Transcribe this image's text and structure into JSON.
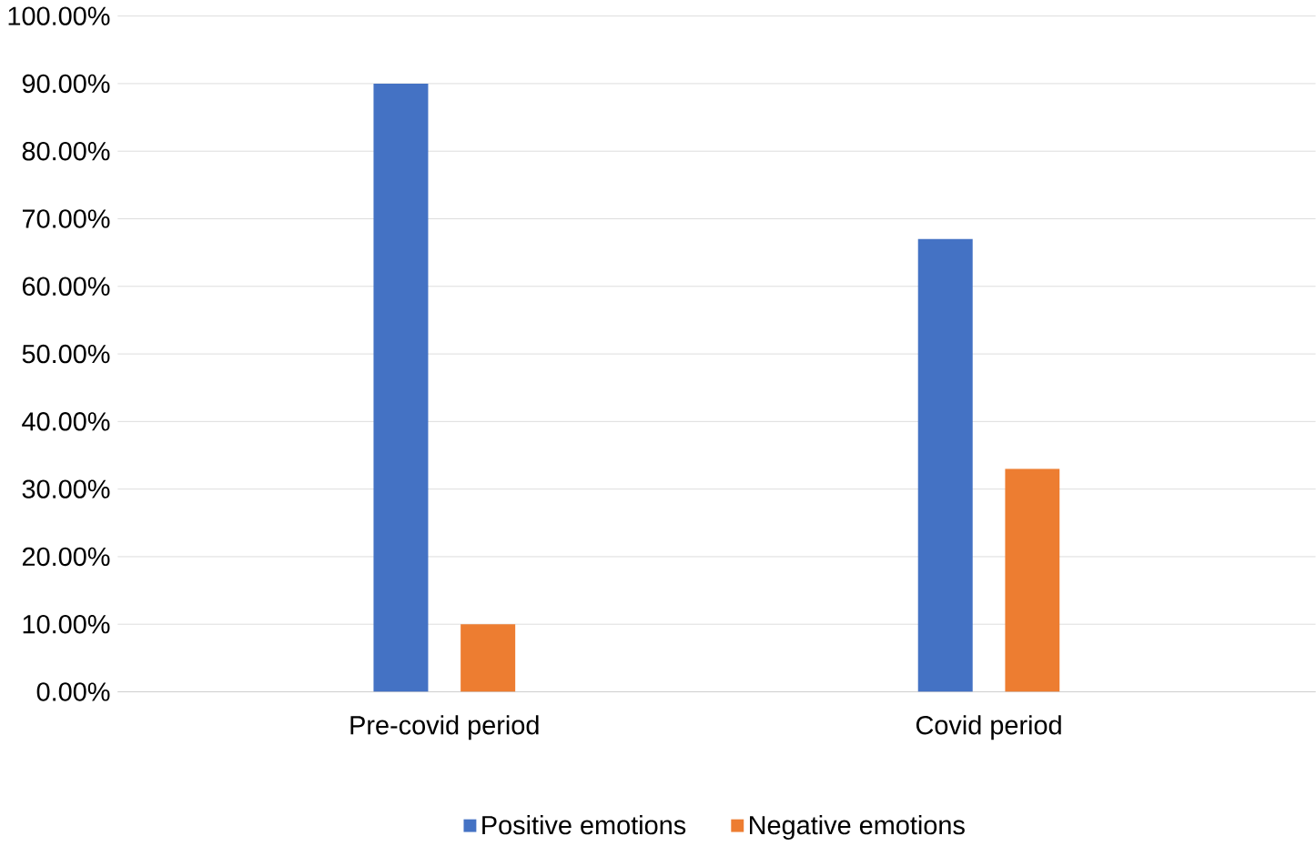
{
  "chart_data": {
    "type": "bar",
    "categories": [
      "Pre-covid period",
      "Covid period"
    ],
    "series": [
      {
        "name": "Positive emotions",
        "color": "#4472c4",
        "values": [
          90,
          67
        ]
      },
      {
        "name": "Negative emotions",
        "color": "#ed7d31",
        "values": [
          10,
          33
        ]
      }
    ],
    "ylim": [
      0,
      100
    ],
    "yticks": [
      {
        "value": 0,
        "label": "0.00%"
      },
      {
        "value": 10,
        "label": "10.00%"
      },
      {
        "value": 20,
        "label": "20.00%"
      },
      {
        "value": 30,
        "label": "30.00%"
      },
      {
        "value": 40,
        "label": "40.00%"
      },
      {
        "value": 50,
        "label": "50.00%"
      },
      {
        "value": 60,
        "label": "60.00%"
      },
      {
        "value": 70,
        "label": "70.00%"
      },
      {
        "value": 80,
        "label": "80.00%"
      },
      {
        "value": 90,
        "label": "90.00%"
      },
      {
        "value": 100,
        "label": "100.00%"
      }
    ],
    "grid": "y",
    "legend": "bottom"
  }
}
